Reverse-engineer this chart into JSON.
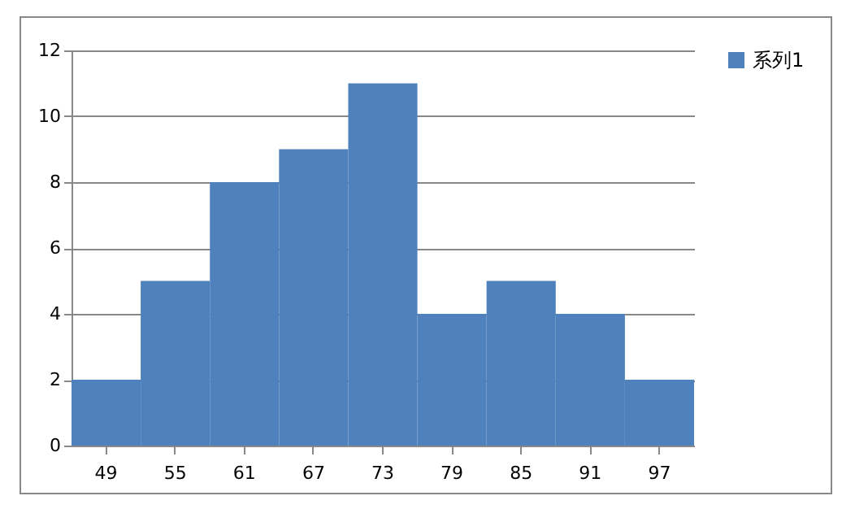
{
  "chart_data": {
    "type": "bar",
    "categories": [
      "49",
      "55",
      "61",
      "67",
      "73",
      "79",
      "85",
      "91",
      "97"
    ],
    "series": [
      {
        "name": "系列1",
        "color": "#4f81bd",
        "values": [
          2,
          5,
          8,
          9,
          11,
          4,
          5,
          4,
          2
        ]
      }
    ],
    "ylim": [
      0,
      12
    ],
    "yticks": [
      0,
      2,
      4,
      6,
      8,
      10,
      12
    ],
    "grid": "y",
    "legend": "right"
  }
}
